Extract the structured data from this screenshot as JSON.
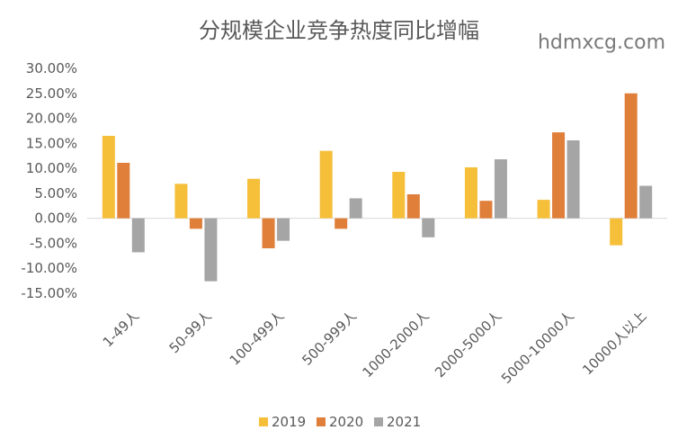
{
  "watermark": "hdmxcg.com",
  "chart_data": {
    "type": "bar",
    "title": "分规模企业竞争热度同比增幅",
    "categories": [
      "1-49人",
      "50-99人",
      "100-499人",
      "500-999人",
      "1000-2000人",
      "2000-5000人",
      "5000-10000人",
      "10000人以上"
    ],
    "series": [
      {
        "name": "2019",
        "color": "#F5BF3A",
        "values": [
          16.5,
          6.9,
          7.9,
          13.5,
          9.3,
          10.2,
          3.7,
          -5.4
        ]
      },
      {
        "name": "2020",
        "color": "#E07F3A",
        "values": [
          11.1,
          -2.1,
          -6.0,
          -2.1,
          4.8,
          3.5,
          17.2,
          25.0
        ]
      },
      {
        "name": "2021",
        "color": "#A5A5A5",
        "values": [
          -6.8,
          -12.6,
          -4.5,
          4.0,
          -3.8,
          11.8,
          15.6,
          6.5
        ]
      }
    ],
    "yticks": [
      "30.00%",
      "25.00%",
      "20.00%",
      "15.00%",
      "10.00%",
      "5.00%",
      "0.00%",
      "-5.00%",
      "-10.00%",
      "-15.00%"
    ],
    "ylim": [
      -15,
      30
    ],
    "ylabel": "",
    "xlabel": "",
    "legend": "bottom",
    "grid": false
  }
}
